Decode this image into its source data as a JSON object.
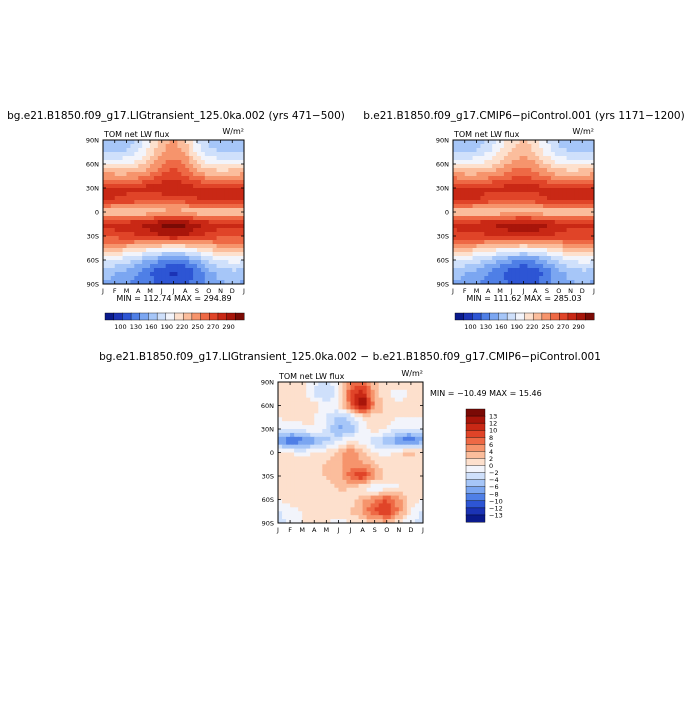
{
  "chart_data": [
    {
      "type": "heatmap",
      "title": "bg.e21.B1850.f09_g17.LIGtransient_125.0ka.002 (yrs 471−500)",
      "subtitle": "TOM net LW flux",
      "units": "W/m²",
      "x_ticks": [
        "J",
        "F",
        "M",
        "A",
        "M",
        "J",
        "J",
        "A",
        "S",
        "O",
        "N",
        "D",
        "J"
      ],
      "y_ticks": [
        "90N",
        "60N",
        "30N",
        "0",
        "30S",
        "60S",
        "90S"
      ],
      "min_max_text": "MIN = 112.74   MAX = 294.89",
      "colorbar": {
        "labels": [
          "100",
          "130",
          "160",
          "190",
          "220",
          "250",
          "270",
          "290"
        ],
        "colors": [
          "#0a1a8c",
          "#1b33b5",
          "#2d55d4",
          "#4f7fe6",
          "#7ba6f1",
          "#a6c6f8",
          "#cfe0fb",
          "#f2f4fb",
          "#fde0cd",
          "#fbbd9c",
          "#f6946c",
          "#ee6945",
          "#e04428",
          "#c92815",
          "#a8150a",
          "#7a0a05"
        ]
      },
      "x": [
        1,
        2,
        3,
        4,
        5,
        6,
        7,
        8,
        9,
        10,
        11,
        12,
        13
      ],
      "y": [
        -90,
        -75,
        -60,
        -45,
        -30,
        -15,
        0,
        15,
        30,
        45,
        60,
        75,
        90
      ],
      "z": [
        [
          160,
          155,
          150,
          145,
          140,
          135,
          132,
          135,
          145,
          155,
          160,
          162,
          160
        ],
        [
          170,
          165,
          158,
          150,
          138,
          128,
          122,
          126,
          140,
          158,
          168,
          172,
          170
        ],
        [
          190,
          186,
          180,
          172,
          160,
          150,
          145,
          150,
          162,
          178,
          188,
          192,
          190
        ],
        [
          225,
          222,
          218,
          212,
          205,
          200,
          198,
          200,
          206,
          215,
          222,
          226,
          225
        ],
        [
          255,
          255,
          258,
          262,
          268,
          274,
          276,
          274,
          266,
          258,
          255,
          254,
          255
        ],
        [
          268,
          270,
          272,
          276,
          282,
          290,
          294,
          290,
          280,
          272,
          268,
          267,
          268
        ],
        [
          215,
          212,
          210,
          212,
          215,
          218,
          222,
          218,
          214,
          212,
          213,
          214,
          215
        ],
        [
          262,
          262,
          260,
          256,
          252,
          250,
          252,
          256,
          262,
          266,
          266,
          264,
          262
        ],
        [
          266,
          266,
          265,
          264,
          268,
          274,
          278,
          272,
          266,
          264,
          265,
          266,
          266
        ],
        [
          232,
          230,
          230,
          232,
          240,
          252,
          258,
          250,
          236,
          228,
          226,
          228,
          232
        ],
        [
          200,
          198,
          200,
          206,
          220,
          236,
          245,
          236,
          214,
          200,
          196,
          198,
          200
        ],
        [
          175,
          172,
          176,
          186,
          205,
          224,
          232,
          222,
          196,
          180,
          174,
          174,
          175
        ],
        [
          165,
          163,
          168,
          178,
          198,
          218,
          226,
          214,
          188,
          172,
          165,
          164,
          165
        ]
      ]
    },
    {
      "type": "heatmap",
      "title": "b.e21.B1850.f09_g17.CMIP6−piControl.001 (yrs 1171−1200)",
      "subtitle": "TOM net LW flux",
      "units": "W/m²",
      "x_ticks": [
        "J",
        "F",
        "M",
        "A",
        "M",
        "J",
        "J",
        "A",
        "S",
        "O",
        "N",
        "D",
        "J"
      ],
      "y_ticks": [
        "90N",
        "60N",
        "30N",
        "0",
        "30S",
        "60S",
        "90S"
      ],
      "min_max_text": "MIN = 111.62   MAX = 285.03",
      "colorbar": {
        "labels": [
          "100",
          "130",
          "160",
          "190",
          "220",
          "250",
          "270",
          "290"
        ],
        "colors": [
          "#0a1a8c",
          "#1b33b5",
          "#2d55d4",
          "#4f7fe6",
          "#7ba6f1",
          "#a6c6f8",
          "#cfe0fb",
          "#f2f4fb",
          "#fde0cd",
          "#fbbd9c",
          "#f6946c",
          "#ee6945",
          "#e04428",
          "#c92815",
          "#a8150a",
          "#7a0a05"
        ]
      },
      "x": [
        1,
        2,
        3,
        4,
        5,
        6,
        7,
        8,
        9,
        10,
        11,
        12,
        13
      ],
      "y": [
        -90,
        -75,
        -60,
        -45,
        -30,
        -15,
        0,
        15,
        30,
        45,
        60,
        75,
        90
      ],
      "z": [
        [
          160,
          155,
          150,
          145,
          140,
          136,
          134,
          136,
          146,
          156,
          160,
          162,
          160
        ],
        [
          170,
          165,
          158,
          150,
          140,
          130,
          125,
          128,
          142,
          158,
          168,
          172,
          170
        ],
        [
          190,
          186,
          180,
          172,
          162,
          152,
          148,
          152,
          164,
          178,
          188,
          192,
          190
        ],
        [
          225,
          222,
          218,
          212,
          206,
          202,
          200,
          202,
          208,
          216,
          222,
          226,
          225
        ],
        [
          256,
          256,
          258,
          262,
          266,
          270,
          272,
          270,
          264,
          258,
          256,
          255,
          256
        ],
        [
          268,
          270,
          272,
          274,
          278,
          282,
          284,
          282,
          276,
          270,
          268,
          267,
          268
        ],
        [
          216,
          212,
          210,
          212,
          214,
          216,
          218,
          216,
          214,
          212,
          214,
          215,
          216
        ],
        [
          266,
          266,
          264,
          258,
          254,
          252,
          252,
          256,
          262,
          266,
          268,
          267,
          266
        ],
        [
          268,
          268,
          266,
          264,
          266,
          270,
          272,
          268,
          264,
          264,
          266,
          268,
          268
        ],
        [
          232,
          230,
          230,
          232,
          238,
          246,
          250,
          244,
          234,
          228,
          226,
          228,
          232
        ],
        [
          200,
          198,
          200,
          206,
          216,
          228,
          234,
          228,
          212,
          200,
          196,
          198,
          200
        ],
        [
          175,
          172,
          176,
          186,
          200,
          214,
          220,
          212,
          194,
          180,
          174,
          174,
          175
        ],
        [
          165,
          163,
          168,
          178,
          194,
          208,
          214,
          206,
          186,
          172,
          165,
          164,
          165
        ]
      ]
    },
    {
      "type": "heatmap",
      "title": "bg.e21.B1850.f09_g17.LIGtransient_125.0ka.002 − b.e21.B1850.f09_g17.CMIP6−piControl.001",
      "subtitle": "TOM net LW flux",
      "units": "W/m²",
      "x_ticks": [
        "J",
        "F",
        "M",
        "A",
        "M",
        "J",
        "J",
        "A",
        "S",
        "O",
        "N",
        "D",
        "J"
      ],
      "y_ticks": [
        "90N",
        "60N",
        "30N",
        "0",
        "30S",
        "60S",
        "90S"
      ],
      "min_max_text": "MIN = −10.49   MAX =  15.46",
      "colorbar": {
        "labels": [
          "13",
          "12",
          "10",
          "8",
          "6",
          "4",
          "2",
          "0",
          "−2",
          "−4",
          "−6",
          "−8",
          "−10",
          "−12",
          "−13"
        ],
        "colors": [
          "#7a0a05",
          "#a8150a",
          "#c92815",
          "#e04428",
          "#ee6945",
          "#f6946c",
          "#fbbd9c",
          "#fde0cd",
          "#f2f4fb",
          "#cfe0fb",
          "#a6c6f8",
          "#7ba6f1",
          "#4f7fe6",
          "#2d55d4",
          "#1b33b5",
          "#0a1a8c"
        ]
      },
      "x": [
        1,
        2,
        3,
        4,
        5,
        6,
        7,
        8,
        9,
        10,
        11,
        12,
        13
      ],
      "y": [
        -90,
        -75,
        -60,
        -45,
        -30,
        -15,
        0,
        15,
        30,
        45,
        60,
        75,
        90
      ],
      "z": [
        [
          -3,
          -1,
          0,
          1,
          0,
          -1,
          0,
          1,
          2,
          3,
          0,
          -1,
          -3
        ],
        [
          -2,
          -1,
          0,
          0,
          1,
          1,
          2,
          4,
          7,
          9,
          5,
          0,
          -2
        ],
        [
          0,
          1,
          1,
          1,
          2,
          1,
          0,
          3,
          5,
          7,
          4,
          1,
          0
        ],
        [
          1,
          1,
          1,
          0,
          1,
          2,
          2,
          0,
          -2,
          -1,
          0,
          1,
          1
        ],
        [
          0,
          0,
          1,
          1,
          2,
          3,
          6,
          9,
          4,
          1,
          0,
          0,
          0
        ],
        [
          0,
          1,
          1,
          1,
          2,
          3,
          5,
          4,
          2,
          1,
          1,
          0,
          0
        ],
        [
          1,
          0,
          -1,
          0,
          1,
          2,
          5,
          2,
          0,
          -1,
          1,
          3,
          1
        ],
        [
          -6,
          -9,
          -8,
          -6,
          -4,
          -2,
          0,
          -1,
          -3,
          -5,
          -7,
          -9,
          -6
        ],
        [
          -2,
          -2,
          -1,
          0,
          -2,
          -6,
          -5,
          -1,
          1,
          0,
          -2,
          -2,
          -2
        ],
        [
          0,
          1,
          1,
          0,
          -2,
          -4,
          -3,
          0,
          1,
          1,
          0,
          0,
          0
        ],
        [
          1,
          1,
          2,
          1,
          -1,
          0,
          6,
          14,
          4,
          1,
          0,
          1,
          1
        ],
        [
          0,
          0,
          1,
          -2,
          -4,
          -1,
          7,
          10,
          3,
          0,
          -1,
          0,
          0
        ],
        [
          1,
          2,
          1,
          -1,
          -3,
          0,
          5,
          6,
          2,
          1,
          1,
          1,
          1
        ]
      ]
    }
  ]
}
